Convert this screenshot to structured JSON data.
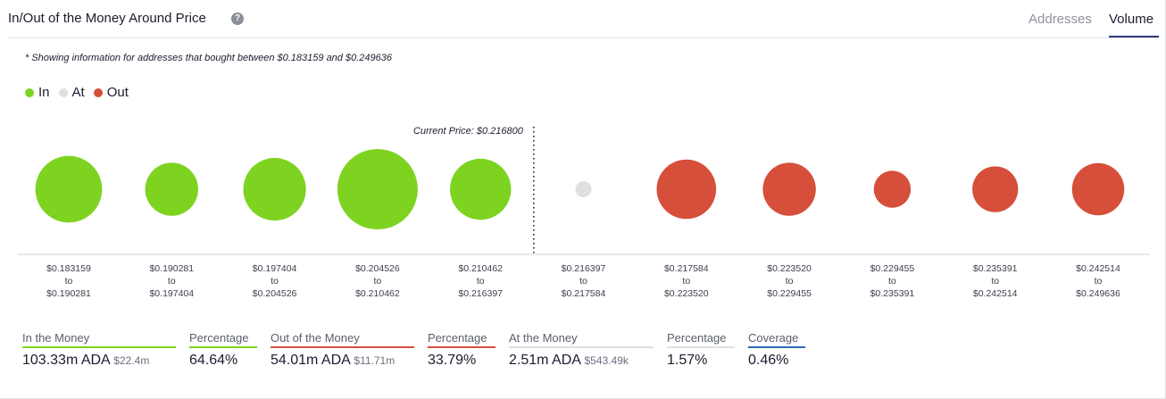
{
  "header": {
    "title": "In/Out of the Money Around Price",
    "help_icon": "question-circle-icon",
    "tabs": [
      {
        "label": "Addresses",
        "active": false
      },
      {
        "label": "Volume",
        "active": true
      }
    ]
  },
  "note": "* Showing information for addresses that bought between $0.183159 and $0.249636",
  "legend": [
    {
      "label": "In",
      "color": "#7ed321"
    },
    {
      "label": "At",
      "color": "#e0e0e0"
    },
    {
      "label": "Out",
      "color": "#d64f3a"
    }
  ],
  "chart_data": {
    "type": "scatter",
    "title": "",
    "current_price_label": "Current Price: $0.216800",
    "current_price_after_index": 4,
    "bubbles": [
      {
        "from": "$0.183159",
        "to_word": "to",
        "to": "$0.190281",
        "status": "in",
        "relative_size": 0.83
      },
      {
        "from": "$0.190281",
        "to_word": "to",
        "to": "$0.197404",
        "status": "in",
        "relative_size": 0.66
      },
      {
        "from": "$0.197404",
        "to_word": "to",
        "to": "$0.204526",
        "status": "in",
        "relative_size": 0.78
      },
      {
        "from": "$0.204526",
        "to_word": "to",
        "to": "$0.210462",
        "status": "in",
        "relative_size": 1.0
      },
      {
        "from": "$0.210462",
        "to_word": "to",
        "to": "$0.216397",
        "status": "in",
        "relative_size": 0.76
      },
      {
        "from": "$0.216397",
        "to_word": "to",
        "to": "$0.217584",
        "status": "at",
        "relative_size": 0.2
      },
      {
        "from": "$0.217584",
        "to_word": "to",
        "to": "$0.223520",
        "status": "out",
        "relative_size": 0.74
      },
      {
        "from": "$0.223520",
        "to_word": "to",
        "to": "$0.229455",
        "status": "out",
        "relative_size": 0.66
      },
      {
        "from": "$0.229455",
        "to_word": "to",
        "to": "$0.235391",
        "status": "out",
        "relative_size": 0.46
      },
      {
        "from": "$0.235391",
        "to_word": "to",
        "to": "$0.242514",
        "status": "out",
        "relative_size": 0.57
      },
      {
        "from": "$0.242514",
        "to_word": "to",
        "to": "$0.249636",
        "status": "out",
        "relative_size": 0.65
      }
    ]
  },
  "summary": [
    {
      "label": "In the Money",
      "value": "103.33m ADA",
      "sub": "$22.4m",
      "color": "#7ed321"
    },
    {
      "label": "Percentage",
      "value": "64.64%",
      "sub": "",
      "color": "#7ed321"
    },
    {
      "label": "Out of the Money",
      "value": "54.01m ADA",
      "sub": "$11.71m",
      "color": "#d64f3a"
    },
    {
      "label": "Percentage",
      "value": "33.79%",
      "sub": "",
      "color": "#d64f3a"
    },
    {
      "label": "At the Money",
      "value": "2.51m ADA",
      "sub": "$543.49k",
      "color": "#e0e0e0"
    },
    {
      "label": "Percentage",
      "value": "1.57%",
      "sub": "",
      "color": "#e0e0e0"
    },
    {
      "label": "Coverage",
      "value": "0.46%",
      "sub": "",
      "color": "#2b6cb0"
    }
  ]
}
